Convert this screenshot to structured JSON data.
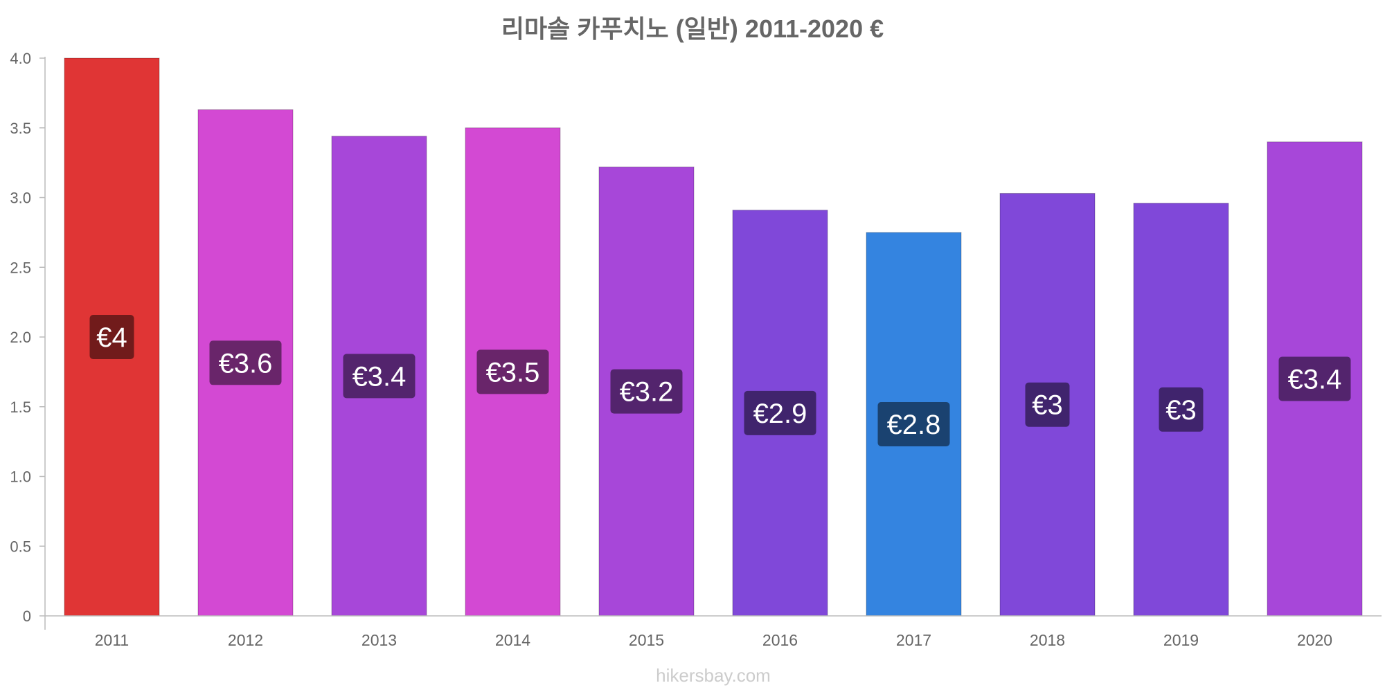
{
  "watermark": "hikersbay.com",
  "chart_data": {
    "type": "bar",
    "title": "리마솔 카푸치노 (일반) 2011-2020 €",
    "xlabel": "",
    "ylabel": "",
    "ylim": [
      0,
      4.0
    ],
    "y_ticks": [
      "0",
      "0.5",
      "1.0",
      "1.5",
      "2.0",
      "2.5",
      "3.0",
      "3.5",
      "4.0"
    ],
    "grid": false,
    "categories": [
      "2011",
      "2012",
      "2013",
      "2014",
      "2015",
      "2016",
      "2017",
      "2018",
      "2019",
      "2020"
    ],
    "values": [
      4.0,
      3.63,
      3.44,
      3.5,
      3.22,
      2.91,
      2.75,
      3.03,
      2.96,
      3.4
    ],
    "data_labels": [
      "€4",
      "€3.6",
      "€3.4",
      "€3.5",
      "€3.2",
      "€2.9",
      "€2.8",
      "€3",
      "€3",
      "€3.4"
    ],
    "bar_colors": [
      "#e03535",
      "#d349d3",
      "#a747d9",
      "#d349d3",
      "#a747d9",
      "#8048d9",
      "#3484e0",
      "#8048d9",
      "#8048d9",
      "#a747d9"
    ],
    "label_bg_colors": [
      "#711b1b",
      "#69256a",
      "#53246d",
      "#69256a",
      "#53246d",
      "#40246d",
      "#1a4270",
      "#40246d",
      "#40246d",
      "#53246d"
    ]
  }
}
